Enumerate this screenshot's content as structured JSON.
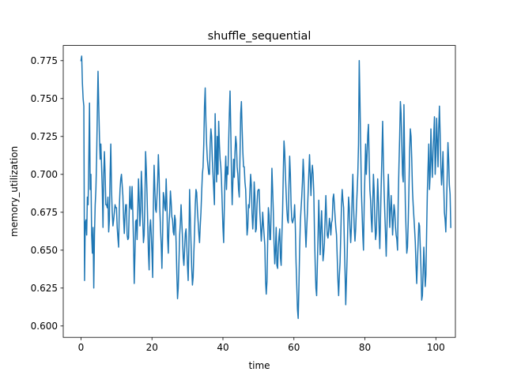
{
  "chart_data": {
    "type": "line",
    "title": "shuffle_sequential",
    "xlabel": "time",
    "ylabel": "memory_utilization",
    "xlim": [
      -5,
      105.5
    ],
    "ylim": [
      0.5925,
      0.785
    ],
    "xticks": [
      {
        "value": 0,
        "label": "0"
      },
      {
        "value": 20,
        "label": "20"
      },
      {
        "value": 40,
        "label": "40"
      },
      {
        "value": 60,
        "label": "60"
      },
      {
        "value": 80,
        "label": "80"
      },
      {
        "value": 100,
        "label": "100"
      }
    ],
    "yticks": [
      {
        "value": 0.6,
        "label": "0.600"
      },
      {
        "value": 0.625,
        "label": "0.625"
      },
      {
        "value": 0.65,
        "label": "0.650"
      },
      {
        "value": 0.675,
        "label": "0.675"
      },
      {
        "value": 0.7,
        "label": "0.700"
      },
      {
        "value": 0.725,
        "label": "0.725"
      },
      {
        "value": 0.75,
        "label": "0.750"
      },
      {
        "value": 0.775,
        "label": "0.775"
      }
    ],
    "grid": false,
    "series": [
      {
        "color": "#1f77b4",
        "x_start": 0,
        "x_step": 0.2,
        "values": [
          0.775,
          0.778,
          0.76,
          0.75,
          0.745,
          0.63,
          0.668,
          0.67,
          0.66,
          0.685,
          0.68,
          0.71,
          0.747,
          0.69,
          0.7,
          0.66,
          0.648,
          0.665,
          0.625,
          0.66,
          0.68,
          0.69,
          0.71,
          0.74,
          0.768,
          0.745,
          0.725,
          0.71,
          0.72,
          0.705,
          0.69,
          0.665,
          0.7,
          0.715,
          0.7,
          0.68,
          0.68,
          0.678,
          0.685,
          0.662,
          0.67,
          0.7,
          0.72,
          0.69,
          0.675,
          0.666,
          0.67,
          0.675,
          0.68,
          0.678,
          0.678,
          0.665,
          0.658,
          0.652,
          0.678,
          0.69,
          0.697,
          0.7,
          0.693,
          0.686,
          0.671,
          0.661,
          0.673,
          0.68,
          0.68,
          0.66,
          0.657,
          0.658,
          0.677,
          0.692,
          0.678,
          0.677,
          0.692,
          0.675,
          0.655,
          0.628,
          0.647,
          0.669,
          0.67,
          0.657,
          0.676,
          0.697,
          0.683,
          0.666,
          0.676,
          0.702,
          0.69,
          0.67,
          0.655,
          0.66,
          0.68,
          0.715,
          0.704,
          0.688,
          0.668,
          0.648,
          0.637,
          0.665,
          0.67,
          0.66,
          0.648,
          0.632,
          0.68,
          0.706,
          0.691,
          0.677,
          0.675,
          0.685,
          0.695,
          0.713,
          0.7,
          0.678,
          0.665,
          0.654,
          0.638,
          0.66,
          0.688,
          0.685,
          0.678,
          0.676,
          0.697,
          0.681,
          0.658,
          0.648,
          0.667,
          0.675,
          0.689,
          0.682,
          0.672,
          0.67,
          0.662,
          0.66,
          0.673,
          0.67,
          0.655,
          0.635,
          0.618,
          0.625,
          0.642,
          0.66,
          0.668,
          0.68,
          0.669,
          0.658,
          0.645,
          0.64,
          0.651,
          0.661,
          0.664,
          0.654,
          0.64,
          0.63,
          0.652,
          0.69,
          0.672,
          0.655,
          0.638,
          0.627,
          0.632,
          0.648,
          0.662,
          0.68,
          0.69,
          0.688,
          0.677,
          0.669,
          0.661,
          0.655,
          0.666,
          0.675,
          0.688,
          0.7,
          0.705,
          0.72,
          0.745,
          0.757,
          0.735,
          0.72,
          0.71,
          0.705,
          0.7,
          0.7,
          0.72,
          0.73,
          0.725,
          0.71,
          0.7,
          0.69,
          0.68,
          0.74,
          0.715,
          0.695,
          0.725,
          0.7,
          0.735,
          0.72,
          0.71,
          0.705,
          0.695,
          0.68,
          0.665,
          0.655,
          0.68,
          0.7,
          0.712,
          0.69,
          0.705,
          0.7,
          0.72,
          0.74,
          0.755,
          0.73,
          0.7,
          0.68,
          0.695,
          0.71,
          0.698,
          0.715,
          0.725,
          0.72,
          0.705,
          0.7,
          0.69,
          0.685,
          0.712,
          0.74,
          0.748,
          0.73,
          0.715,
          0.705,
          0.705,
          0.695,
          0.69,
          0.675,
          0.66,
          0.665,
          0.68,
          0.678,
          0.689,
          0.7,
          0.693,
          0.674,
          0.664,
          0.674,
          0.695,
          0.686,
          0.662,
          0.664,
          0.68,
          0.689,
          0.69,
          0.69,
          0.675,
          0.666,
          0.656,
          0.664,
          0.675,
          0.667,
          0.66,
          0.653,
          0.63,
          0.621,
          0.629,
          0.655,
          0.678,
          0.673,
          0.657,
          0.657,
          0.677,
          0.704,
          0.69,
          0.675,
          0.654,
          0.641,
          0.65,
          0.665,
          0.64,
          0.638,
          0.652,
          0.659,
          0.664,
          0.645,
          0.64,
          0.659,
          0.675,
          0.7,
          0.722,
          0.715,
          0.7,
          0.688,
          0.677,
          0.67,
          0.668,
          0.693,
          0.712,
          0.7,
          0.68,
          0.67,
          0.668,
          0.67,
          0.672,
          0.68,
          0.665,
          0.642,
          0.627,
          0.611,
          0.605,
          0.625,
          0.65,
          0.668,
          0.677,
          0.685,
          0.695,
          0.71,
          0.7,
          0.678,
          0.664,
          0.652,
          0.664,
          0.675,
          0.688,
          0.701,
          0.713,
          0.7,
          0.686,
          0.7,
          0.706,
          0.7,
          0.688,
          0.66,
          0.64,
          0.625,
          0.62,
          0.64,
          0.66,
          0.683,
          0.665,
          0.647,
          0.664,
          0.676,
          0.661,
          0.643,
          0.648,
          0.655,
          0.672,
          0.686,
          0.671,
          0.66,
          0.658,
          0.663,
          0.671,
          0.667,
          0.66,
          0.668,
          0.67,
          0.684,
          0.687,
          0.68,
          0.672,
          0.665,
          0.66,
          0.645,
          0.63,
          0.62,
          0.633,
          0.642,
          0.66,
          0.68,
          0.69,
          0.683,
          0.678,
          0.656,
          0.636,
          0.614,
          0.63,
          0.646,
          0.668,
          0.685,
          0.678,
          0.664,
          0.655,
          0.665,
          0.685,
          0.7,
          0.68,
          0.665,
          0.656,
          0.664,
          0.677,
          0.688,
          0.7,
          0.72,
          0.775,
          0.75,
          0.72,
          0.69,
          0.675,
          0.66,
          0.65,
          0.68,
          0.7,
          0.72,
          0.7,
          0.712,
          0.726,
          0.733,
          0.71,
          0.69,
          0.683,
          0.67,
          0.662,
          0.68,
          0.7,
          0.69,
          0.669,
          0.657,
          0.661,
          0.678,
          0.697,
          0.684,
          0.665,
          0.651,
          0.672,
          0.694,
          0.713,
          0.735,
          0.71,
          0.69,
          0.675,
          0.661,
          0.646,
          0.664,
          0.683,
          0.7,
          0.685,
          0.665,
          0.676,
          0.686,
          0.675,
          0.66,
          0.67,
          0.68,
          0.676,
          0.666,
          0.66,
          0.657,
          0.65,
          0.684,
          0.706,
          0.725,
          0.748,
          0.74,
          0.72,
          0.7,
          0.695,
          0.746,
          0.71,
          0.68,
          0.663,
          0.648,
          0.652,
          0.668,
          0.69,
          0.715,
          0.73,
          0.725,
          0.71,
          0.69,
          0.68,
          0.672,
          0.664,
          0.655,
          0.64,
          0.628,
          0.642,
          0.655,
          0.668,
          0.666,
          0.652,
          0.638,
          0.617,
          0.62,
          0.635,
          0.652,
          0.64,
          0.626,
          0.634,
          0.663,
          0.689,
          0.705,
          0.72,
          0.69,
          0.7,
          0.73,
          0.71,
          0.698,
          0.715,
          0.726,
          0.738,
          0.7,
          0.712,
          0.737,
          0.723,
          0.705,
          0.73,
          0.745,
          0.727,
          0.705,
          0.693,
          0.702,
          0.715,
          0.694,
          0.675,
          0.67,
          0.662,
          0.68,
          0.7,
          0.721,
          0.71,
          0.693,
          0.687,
          0.665
        ]
      }
    ]
  }
}
